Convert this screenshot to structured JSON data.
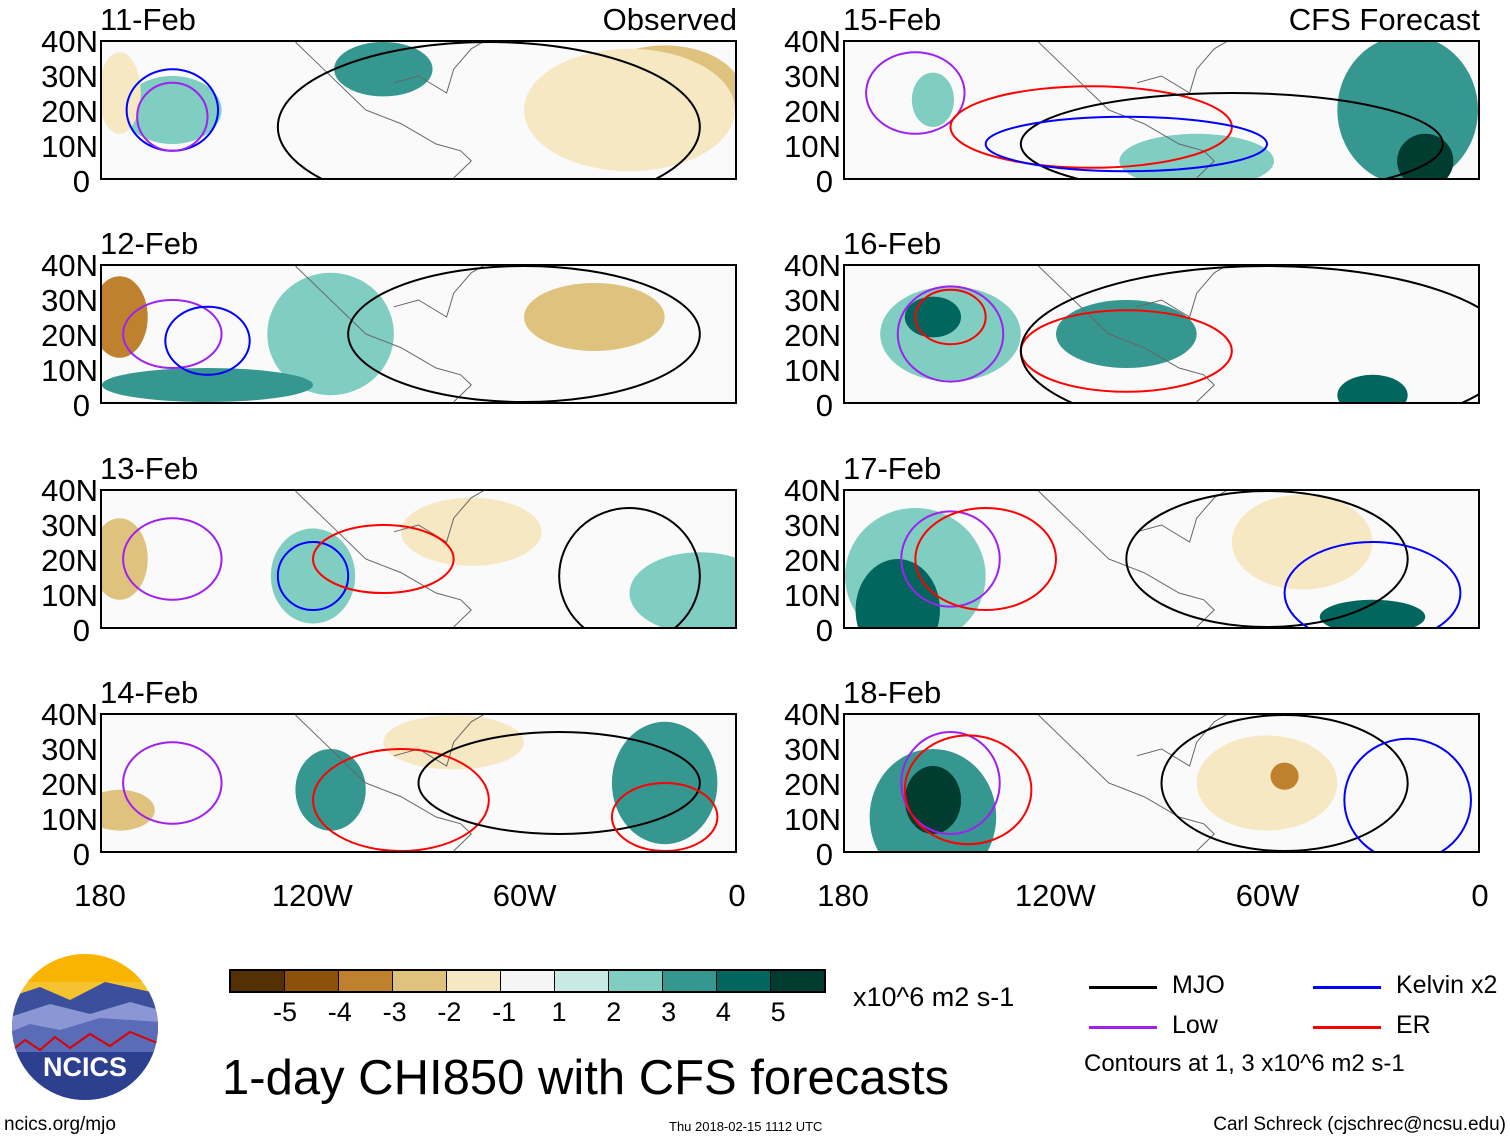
{
  "panels": [
    {
      "date": "11-Feb",
      "header": "Observed"
    },
    {
      "date": "12-Feb",
      "header": ""
    },
    {
      "date": "13-Feb",
      "header": ""
    },
    {
      "date": "14-Feb",
      "header": ""
    },
    {
      "date": "15-Feb",
      "header": "CFS Forecast"
    },
    {
      "date": "16-Feb",
      "header": ""
    },
    {
      "date": "17-Feb",
      "header": ""
    },
    {
      "date": "18-Feb",
      "header": ""
    }
  ],
  "axes": {
    "lat_labels": [
      "40N",
      "30N",
      "20N",
      "10N",
      "0"
    ],
    "lon_labels": [
      "180",
      "120W",
      "60W",
      "0"
    ],
    "lon_range": [
      -180,
      0
    ],
    "lat_range": [
      0,
      40
    ]
  },
  "colorbar": {
    "colors": [
      "#543005",
      "#8c510a",
      "#bf812d",
      "#dfc27d",
      "#f6e8c3",
      "#f5f5f5",
      "#c7eae5",
      "#80cdc1",
      "#35978f",
      "#01665e",
      "#003c30"
    ],
    "labels": [
      "-5",
      "-4",
      "-3",
      "-2",
      "-1",
      "1",
      "2",
      "3",
      "4",
      "5"
    ],
    "units": "x10^6 m2 s-1"
  },
  "title": "1-day CHI850 with CFS forecasts",
  "legend": [
    {
      "label": "MJO",
      "color": "#000000"
    },
    {
      "label": "Kelvin x2",
      "color": "#0000ff"
    },
    {
      "label": "Low",
      "color": "#a020f0"
    },
    {
      "label": "ER",
      "color": "#ff0000"
    }
  ],
  "contour_note": "Contours at 1, 3 x10^6 m2 s-1",
  "logo": {
    "text": "NCICS"
  },
  "footer": {
    "url": "ncics.org/mjo",
    "timestamp": "Thu 2018-02-15 1112 UTC",
    "author": "Carl Schreck (cjschrec@ncsu.edu)"
  }
}
